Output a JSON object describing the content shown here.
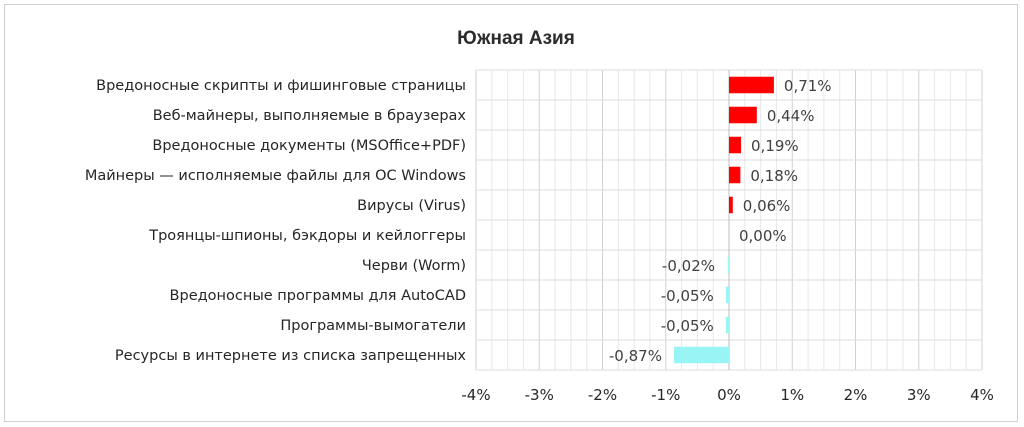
{
  "chart_data": {
    "type": "bar",
    "orientation": "horizontal",
    "title": "Южная Азия",
    "categories": [
      "Вредоносные скрипты и фишинговые страницы",
      "Веб-майнеры, выполняемые в браузерах",
      "Вредоносные документы (MSOffice+PDF)",
      "Майнеры — исполняемые файлы для ОС Windows",
      "Вирусы (Virus)",
      "Троянцы-шпионы, бэкдоры и кейлоггеры",
      "Черви (Worm)",
      "Вредоносные программы для AutoCAD",
      "Программы-вымогатели",
      "Ресурсы в интернете из списка запрещенных"
    ],
    "values": [
      0.71,
      0.44,
      0.19,
      0.18,
      0.06,
      0.0,
      -0.02,
      -0.05,
      -0.05,
      -0.87
    ],
    "data_labels": [
      "0,71%",
      "0,44%",
      "0,19%",
      "0,18%",
      "0,06%",
      "0,00%",
      "-0,02%",
      "-0,05%",
      "-0,05%",
      "-0,87%"
    ],
    "xlim": [
      -4,
      4
    ],
    "xticks": [
      -4,
      -3,
      -2,
      -1,
      0,
      1,
      2,
      3,
      4
    ],
    "xtick_labels": [
      "-4%",
      "-3%",
      "-2%",
      "-1%",
      "0%",
      "1%",
      "2%",
      "3%",
      "4%"
    ],
    "positive_color": "#ff0000",
    "negative_color": "#99f5f5",
    "grid": true,
    "legend": "none"
  }
}
